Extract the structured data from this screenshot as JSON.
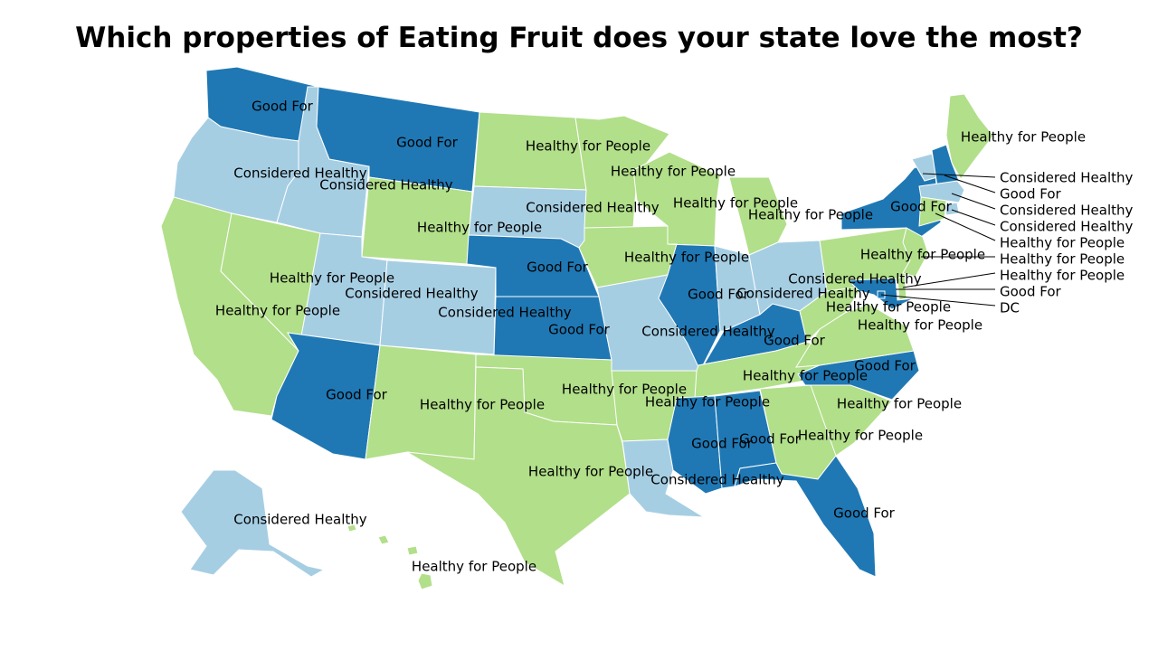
{
  "title": "Which properties of Eating Fruit does your state love the most?",
  "colors": {
    "Good For": "#1f78b4",
    "Considered Healthy": "#a6cee3",
    "Healthy for People": "#b2df8a"
  },
  "states": [
    {
      "id": "WA",
      "label": "Good For"
    },
    {
      "id": "OR",
      "label": "Considered Healthy"
    },
    {
      "id": "CA",
      "label": "Healthy for People"
    },
    {
      "id": "ID",
      "label": "Considered Healthy"
    },
    {
      "id": "NV",
      "label": "Healthy for People"
    },
    {
      "id": "MT",
      "label": "Good For"
    },
    {
      "id": "WY",
      "label": "Healthy for People"
    },
    {
      "id": "UT",
      "label": "Considered Healthy"
    },
    {
      "id": "AZ",
      "label": "Good For"
    },
    {
      "id": "CO",
      "label": "Considered Healthy"
    },
    {
      "id": "NM",
      "label": "Healthy for People"
    },
    {
      "id": "ND",
      "label": "Healthy for People"
    },
    {
      "id": "SD",
      "label": "Considered Healthy"
    },
    {
      "id": "NE",
      "label": "Good For"
    },
    {
      "id": "KS",
      "label": "Good For"
    },
    {
      "id": "OK",
      "label": "Healthy for People"
    },
    {
      "id": "TX",
      "label": "Healthy for People"
    },
    {
      "id": "MN",
      "label": "Healthy for People"
    },
    {
      "id": "IA",
      "label": "Healthy for People"
    },
    {
      "id": "MO",
      "label": "Considered Healthy"
    },
    {
      "id": "AR",
      "label": "Healthy for People"
    },
    {
      "id": "LA",
      "label": "Considered Healthy"
    },
    {
      "id": "WI",
      "label": "Healthy for People"
    },
    {
      "id": "IL",
      "label": "Good For"
    },
    {
      "id": "MI",
      "label": "Healthy for People"
    },
    {
      "id": "IN",
      "label": "Considered Healthy"
    },
    {
      "id": "OH",
      "label": "Considered Healthy"
    },
    {
      "id": "KY",
      "label": "Good For"
    },
    {
      "id": "TN",
      "label": "Healthy for People"
    },
    {
      "id": "MS",
      "label": "Good For"
    },
    {
      "id": "AL",
      "label": "Good For"
    },
    {
      "id": "GA",
      "label": "Healthy for People"
    },
    {
      "id": "FL",
      "label": "Good For"
    },
    {
      "id": "SC",
      "label": "Healthy for People"
    },
    {
      "id": "NC",
      "label": "Good For"
    },
    {
      "id": "VA",
      "label": "Healthy for People"
    },
    {
      "id": "WV",
      "label": "Healthy for People"
    },
    {
      "id": "PA",
      "label": "Healthy for People"
    },
    {
      "id": "NY",
      "label": "Good For"
    },
    {
      "id": "ME",
      "label": "Healthy for People"
    },
    {
      "id": "VT",
      "label": "Considered Healthy"
    },
    {
      "id": "NH",
      "label": "Good For"
    },
    {
      "id": "MA",
      "label": "Considered Healthy"
    },
    {
      "id": "RI",
      "label": "Considered Healthy"
    },
    {
      "id": "CT",
      "label": "Healthy for People"
    },
    {
      "id": "NJ",
      "label": "Healthy for People"
    },
    {
      "id": "DE",
      "label": "Healthy for People"
    },
    {
      "id": "MD",
      "label": "Good For"
    },
    {
      "id": "DC",
      "label": "DC"
    },
    {
      "id": "AK",
      "label": "Considered Healthy"
    },
    {
      "id": "HI",
      "label": "Healthy for People"
    }
  ]
}
